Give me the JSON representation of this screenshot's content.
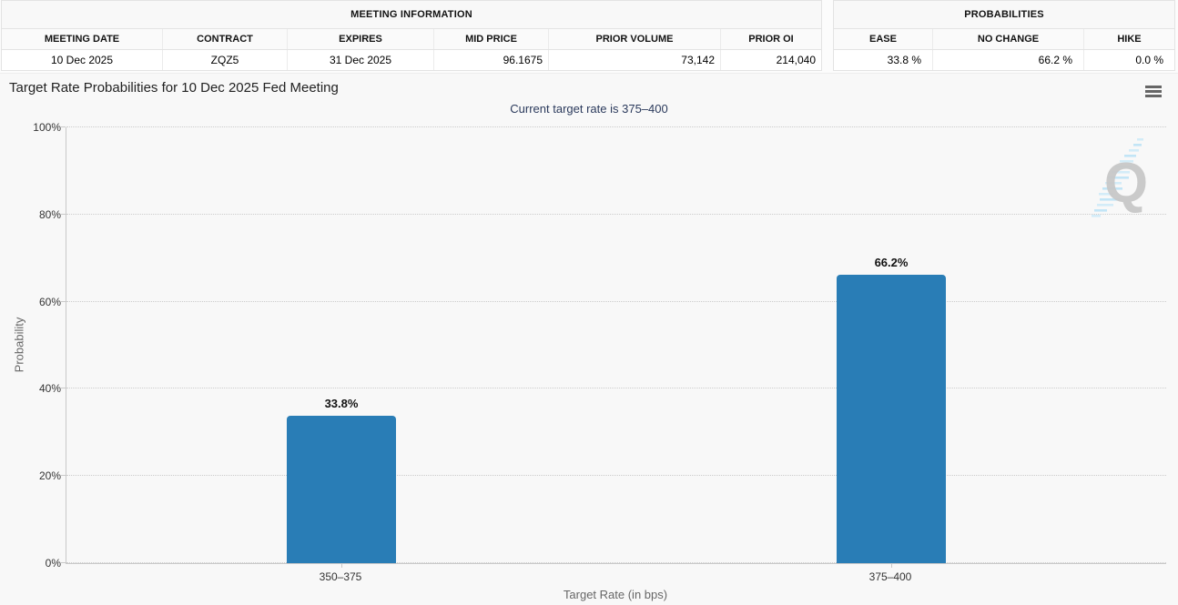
{
  "meeting_table": {
    "title": "MEETING INFORMATION",
    "columns": [
      "MEETING DATE",
      "CONTRACT",
      "EXPIRES",
      "MID PRICE",
      "PRIOR VOLUME",
      "PRIOR OI"
    ],
    "row": [
      "10 Dec 2025",
      "ZQZ5",
      "31 Dec 2025",
      "96.1675",
      "73,142",
      "214,040"
    ]
  },
  "probabilities_table": {
    "title": "PROBABILITIES",
    "columns": [
      "EASE",
      "NO CHANGE",
      "HIKE"
    ],
    "row": [
      "33.8 %",
      "66.2 %",
      "0.0 %"
    ]
  },
  "chart": {
    "title": "Target Rate Probabilities for 10 Dec 2025 Fed Meeting",
    "subtitle": "Current target rate is 375–400",
    "menu_icon": "hamburger-icon",
    "watermark_letter": "Q",
    "colors": {
      "bar": "#297db6",
      "subtitle": "#2b3a5c",
      "axis_line": "#c9c9c9",
      "grid": "#cccccc",
      "tick_label": "#333333",
      "muted_label": "#666666",
      "watermark_q": "#c8c8c8",
      "watermark_dash": "#b9e2f6"
    }
  },
  "chart_data": {
    "type": "bar",
    "title": "Target Rate Probabilities for 10 Dec 2025 Fed Meeting",
    "subtitle": "Current target rate is 375–400",
    "categories": [
      "350–375",
      "375–400"
    ],
    "values": [
      33.8,
      66.2
    ],
    "data_labels": [
      "33.8%",
      "66.2%"
    ],
    "xlabel": "Target Rate (in bps)",
    "ylabel": "Probability",
    "ylim": [
      0,
      100
    ],
    "yticks": [
      0,
      20,
      40,
      60,
      80,
      100
    ],
    "ytick_labels": [
      "0%",
      "20%",
      "40%",
      "60%",
      "80%",
      "100%"
    ],
    "grid": "horizontal-dotted",
    "legend": "none",
    "bar_color": "#297db6"
  }
}
